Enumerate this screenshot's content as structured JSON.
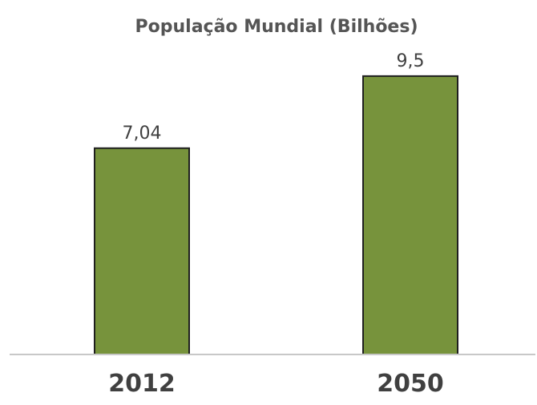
{
  "chart_data": {
    "type": "bar",
    "title": "População Mundial (Bilhões)",
    "categories": [
      "2012",
      "2050"
    ],
    "values": [
      7.04,
      9.5
    ],
    "value_labels": [
      "7,04",
      "9,5"
    ],
    "xlabel": "",
    "ylabel": "",
    "ylim": [
      0,
      10.4
    ],
    "grid": false,
    "legend": "none",
    "bar_color": "#77933c",
    "bar_border_color": "#1f1f1f",
    "baseline_color": "#c8c8c8"
  }
}
